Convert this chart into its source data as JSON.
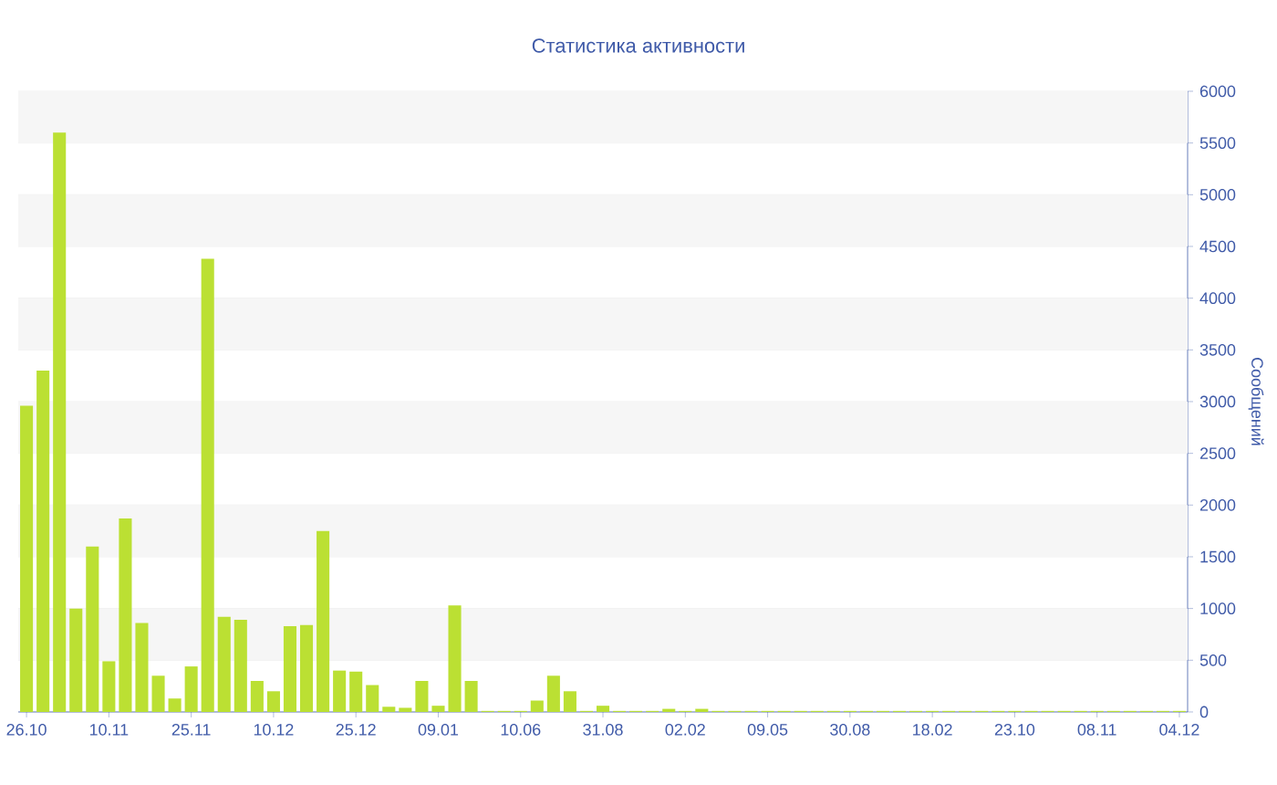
{
  "chart_data": {
    "type": "bar",
    "title": "Статистика активности",
    "ylabel": "Сообщений",
    "categories": [
      "26.10",
      null,
      null,
      null,
      null,
      "10.11",
      null,
      null,
      null,
      null,
      "25.11",
      null,
      null,
      null,
      null,
      "10.12",
      null,
      null,
      null,
      null,
      "25.12",
      null,
      null,
      null,
      null,
      "09.01",
      null,
      null,
      null,
      null,
      "10.06",
      null,
      null,
      null,
      null,
      "31.08",
      null,
      null,
      null,
      null,
      "02.02",
      null,
      null,
      null,
      null,
      "09.05",
      null,
      null,
      null,
      null,
      "30.08",
      null,
      null,
      null,
      null,
      "18.02",
      null,
      null,
      null,
      null,
      "23.10",
      null,
      null,
      null,
      null,
      "08.11",
      null,
      null,
      null,
      null,
      "04.12"
    ],
    "values": [
      2960,
      3300,
      5600,
      1000,
      1600,
      490,
      1870,
      860,
      350,
      130,
      440,
      4380,
      920,
      890,
      300,
      200,
      830,
      840,
      1750,
      400,
      390,
      260,
      50,
      40,
      300,
      60,
      1030,
      300,
      10,
      10,
      10,
      110,
      350,
      200,
      10,
      60,
      10,
      10,
      10,
      30,
      10,
      30,
      10,
      10,
      10,
      10,
      10,
      10,
      10,
      10,
      10,
      10,
      10,
      10,
      10,
      10,
      10,
      10,
      10,
      10,
      10,
      10,
      10,
      10,
      10,
      10,
      10,
      10,
      10,
      10,
      10
    ],
    "color": "#bbe033",
    "ylim": [
      0,
      6000
    ],
    "yticks": [
      0,
      500,
      1000,
      1500,
      2000,
      2500,
      3000,
      3500,
      4000,
      4500,
      5000,
      5500,
      6000
    ],
    "grid": "y"
  }
}
